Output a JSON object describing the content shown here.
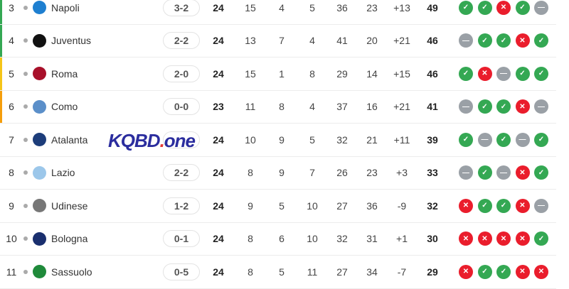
{
  "colors": {
    "win": "#34a853",
    "loss": "#ea1d2c",
    "draw": "#9aa0a6",
    "champions": "#34a853",
    "europa": "#f5c518",
    "conference": "#f59e0b"
  },
  "rows": [
    {
      "pos": "3",
      "team": "Napoli",
      "crest": "#1e7fd0",
      "zone": "champions",
      "next": "3-2",
      "p": "24",
      "w": "15",
      "d": "4",
      "l": "5",
      "gf": "36",
      "ga": "23",
      "gd": "+13",
      "pts": "49",
      "form": [
        "W",
        "W",
        "L",
        "W",
        "D"
      ]
    },
    {
      "pos": "4",
      "team": "Juventus",
      "crest": "#111111",
      "zone": "champions",
      "next": "2-2",
      "p": "24",
      "w": "13",
      "d": "7",
      "l": "4",
      "gf": "41",
      "ga": "20",
      "gd": "+21",
      "pts": "46",
      "form": [
        "D",
        "W",
        "W",
        "L",
        "W"
      ]
    },
    {
      "pos": "5",
      "team": "Roma",
      "crest": "#a8102a",
      "zone": "europa",
      "next": "2-0",
      "p": "24",
      "w": "15",
      "d": "1",
      "l": "8",
      "gf": "29",
      "ga": "14",
      "gd": "+15",
      "pts": "46",
      "form": [
        "W",
        "L",
        "D",
        "W",
        "W"
      ]
    },
    {
      "pos": "6",
      "team": "Como",
      "crest": "#5b8fc9",
      "zone": "conference",
      "next": "0-0",
      "p": "23",
      "w": "11",
      "d": "8",
      "l": "4",
      "gf": "37",
      "ga": "16",
      "gd": "+21",
      "pts": "41",
      "form": [
        "D",
        "W",
        "W",
        "L",
        "D"
      ]
    },
    {
      "pos": "7",
      "team": "Atalanta",
      "crest": "#1d3d7a",
      "zone": "",
      "next": "",
      "p": "24",
      "w": "10",
      "d": "9",
      "l": "5",
      "gf": "32",
      "ga": "21",
      "gd": "+11",
      "pts": "39",
      "form": [
        "W",
        "D",
        "W",
        "D",
        "W"
      ]
    },
    {
      "pos": "8",
      "team": "Lazio",
      "crest": "#9cc7ea",
      "zone": "",
      "next": "2-2",
      "p": "24",
      "w": "8",
      "d": "9",
      "l": "7",
      "gf": "26",
      "ga": "23",
      "gd": "+3",
      "pts": "33",
      "form": [
        "D",
        "W",
        "D",
        "L",
        "W"
      ]
    },
    {
      "pos": "9",
      "team": "Udinese",
      "crest": "#777777",
      "zone": "",
      "next": "1-2",
      "p": "24",
      "w": "9",
      "d": "5",
      "l": "10",
      "gf": "27",
      "ga": "36",
      "gd": "-9",
      "pts": "32",
      "form": [
        "L",
        "W",
        "W",
        "L",
        "D"
      ]
    },
    {
      "pos": "10",
      "team": "Bologna",
      "crest": "#1a2f6e",
      "zone": "",
      "next": "0-1",
      "p": "24",
      "w": "8",
      "d": "6",
      "l": "10",
      "gf": "32",
      "ga": "31",
      "gd": "+1",
      "pts": "30",
      "form": [
        "L",
        "L",
        "L",
        "L",
        "W"
      ]
    },
    {
      "pos": "11",
      "team": "Sassuolo",
      "crest": "#1f8a3a",
      "zone": "",
      "next": "0-5",
      "p": "24",
      "w": "8",
      "d": "5",
      "l": "11",
      "gf": "27",
      "ga": "34",
      "gd": "-7",
      "pts": "29",
      "form": [
        "L",
        "W",
        "W",
        "L",
        "L"
      ]
    }
  ],
  "watermark": {
    "text1": "KQBD",
    "text2": "one"
  }
}
